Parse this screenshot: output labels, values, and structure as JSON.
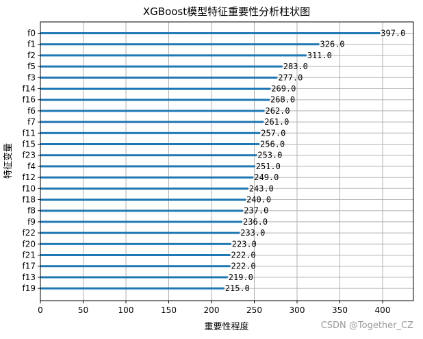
{
  "chart_data": {
    "type": "bar",
    "orientation": "horizontal",
    "title": "XGBoost模型特征重要性分析柱状图",
    "xlabel": "重要性程度",
    "ylabel": "特征变量",
    "xlim": [
      0,
      436
    ],
    "xticks": [
      0,
      50,
      100,
      150,
      200,
      250,
      300,
      350,
      400
    ],
    "grid": true,
    "bar_color": "#1f77b4",
    "categories": [
      "f0",
      "f1",
      "f2",
      "f5",
      "f3",
      "f14",
      "f16",
      "f6",
      "f7",
      "f11",
      "f15",
      "f23",
      "f4",
      "f12",
      "f10",
      "f18",
      "f8",
      "f9",
      "f22",
      "f20",
      "f21",
      "f17",
      "f13",
      "f19"
    ],
    "values": [
      397.0,
      326.0,
      311.0,
      283.0,
      277.0,
      269.0,
      268.0,
      262.0,
      261.0,
      257.0,
      256.0,
      253.0,
      251.0,
      249.0,
      243.0,
      240.0,
      237.0,
      236.0,
      233.0,
      223.0,
      222.0,
      222.0,
      219.0,
      215.0
    ],
    "value_labels": [
      "397.0",
      "326.0",
      "311.0",
      "283.0",
      "277.0",
      "269.0",
      "268.0",
      "262.0",
      "261.0",
      "257.0",
      "256.0",
      "253.0",
      "251.0",
      "249.0",
      "243.0",
      "240.0",
      "237.0",
      "236.0",
      "233.0",
      "223.0",
      "222.0",
      "222.0",
      "219.0",
      "215.0"
    ]
  },
  "watermark": "CSDN @Together_CZ"
}
